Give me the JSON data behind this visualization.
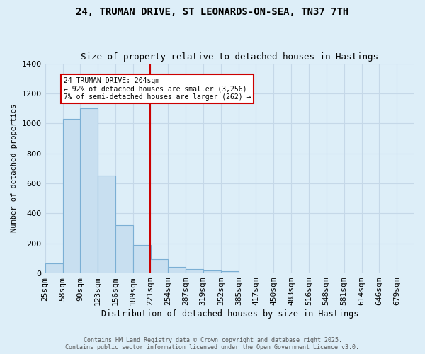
{
  "title1": "24, TRUMAN DRIVE, ST LEONARDS-ON-SEA, TN37 7TH",
  "title2": "Size of property relative to detached houses in Hastings",
  "xlabel": "Distribution of detached houses by size in Hastings",
  "ylabel": "Number of detached properties",
  "annotation_line1": "24 TRUMAN DRIVE: 204sqm",
  "annotation_line2": "← 92% of detached houses are smaller (3,256)",
  "annotation_line3": "7% of semi-detached houses are larger (262) →",
  "bin_labels": [
    "25sqm",
    "58sqm",
    "90sqm",
    "123sqm",
    "156sqm",
    "189sqm",
    "221sqm",
    "254sqm",
    "287sqm",
    "319sqm",
    "352sqm",
    "385sqm",
    "417sqm",
    "450sqm",
    "483sqm",
    "516sqm",
    "548sqm",
    "581sqm",
    "614sqm",
    "646sqm",
    "679sqm"
  ],
  "bin_edges": [
    25,
    58,
    90,
    123,
    156,
    189,
    221,
    254,
    287,
    319,
    352,
    385,
    417,
    450,
    483,
    516,
    548,
    581,
    614,
    646,
    679
  ],
  "bar_values": [
    65,
    1030,
    1100,
    650,
    320,
    190,
    95,
    45,
    28,
    20,
    15,
    0,
    0,
    0,
    0,
    0,
    0,
    0,
    0,
    0
  ],
  "bar_color": "#c8dff0",
  "bar_edge_color": "#7bafd4",
  "vline_color": "#cc0000",
  "vline_x": 221,
  "annotation_box_color": "#cc0000",
  "background_color": "#ddeef8",
  "grid_color": "#c5d8e8",
  "ylim": [
    0,
    1400
  ],
  "xlim_min": 25,
  "xlim_max": 712,
  "footer1": "Contains HM Land Registry data © Crown copyright and database right 2025.",
  "footer2": "Contains public sector information licensed under the Open Government Licence v3.0."
}
